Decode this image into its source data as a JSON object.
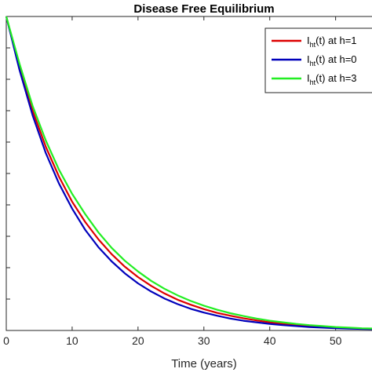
{
  "chart_data": {
    "type": "line",
    "title": "Disease Free Equilibrium",
    "xlabel": "Time (years)",
    "ylabel": "",
    "xlim": [
      0,
      56
    ],
    "ylim": [
      0,
      1
    ],
    "x_ticks": [
      0,
      10,
      20,
      30,
      40,
      50
    ],
    "y_tick_count": 11,
    "grid": false,
    "legend_position": "top-right",
    "series": [
      {
        "name_main": "I",
        "name_sub": "ht",
        "name_rest": "(t) at h=1",
        "color": "#dd0000",
        "x": [
          0,
          2,
          4,
          6,
          8,
          10,
          12,
          14,
          16,
          18,
          20,
          22,
          24,
          26,
          28,
          30,
          32,
          34,
          36,
          38,
          40,
          42,
          44,
          46,
          48,
          50,
          52,
          54,
          56
        ],
        "y": [
          1.0,
          0.84,
          0.7,
          0.585,
          0.49,
          0.41,
          0.345,
          0.29,
          0.243,
          0.203,
          0.17,
          0.142,
          0.118,
          0.098,
          0.082,
          0.068,
          0.056,
          0.047,
          0.039,
          0.032,
          0.026,
          0.021,
          0.017,
          0.014,
          0.011,
          0.009,
          0.007,
          0.006,
          0.005
        ]
      },
      {
        "name_main": "I",
        "name_sub": "ht",
        "name_rest": "(t) at h=0",
        "color": "#0000bb",
        "x": [
          0,
          2,
          4,
          6,
          8,
          10,
          12,
          14,
          16,
          18,
          20,
          22,
          24,
          26,
          28,
          30,
          32,
          34,
          36,
          38,
          40,
          42,
          44,
          46,
          48,
          50,
          52,
          54,
          56
        ],
        "y": [
          1.0,
          0.83,
          0.685,
          0.565,
          0.468,
          0.388,
          0.32,
          0.265,
          0.22,
          0.182,
          0.15,
          0.124,
          0.102,
          0.084,
          0.069,
          0.057,
          0.047,
          0.038,
          0.031,
          0.026,
          0.021,
          0.017,
          0.014,
          0.011,
          0.009,
          0.007,
          0.006,
          0.005,
          0.004
        ]
      },
      {
        "name_main": "I",
        "name_sub": "ht",
        "name_rest": "(t) at h=3",
        "color": "#22ee22",
        "x": [
          0,
          2,
          4,
          6,
          8,
          10,
          12,
          14,
          16,
          18,
          20,
          22,
          24,
          26,
          28,
          30,
          32,
          34,
          36,
          38,
          40,
          42,
          44,
          46,
          48,
          50,
          52,
          54,
          56
        ],
        "y": [
          1.0,
          0.85,
          0.715,
          0.605,
          0.512,
          0.435,
          0.37,
          0.312,
          0.263,
          0.222,
          0.188,
          0.158,
          0.133,
          0.112,
          0.094,
          0.079,
          0.066,
          0.055,
          0.046,
          0.038,
          0.031,
          0.026,
          0.021,
          0.017,
          0.014,
          0.011,
          0.009,
          0.007,
          0.006
        ]
      }
    ]
  }
}
